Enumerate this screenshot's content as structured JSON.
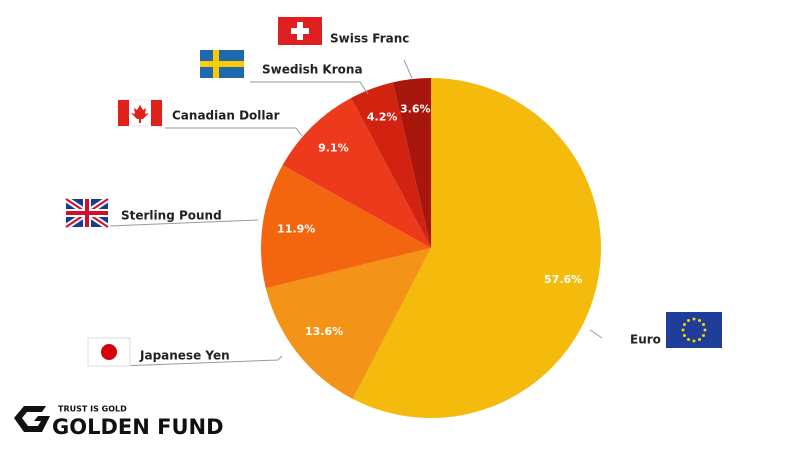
{
  "chart_data": {
    "type": "pie",
    "categories": [
      "Euro",
      "Japanese Yen",
      "Sterling Pound",
      "Canadian Dollar",
      "Swedish Krona",
      "Swiss Franc"
    ],
    "values": [
      57.6,
      13.6,
      11.9,
      9.1,
      4.2,
      3.6
    ],
    "value_labels": [
      "57.6%",
      "13.6%",
      "11.9%",
      "9.1%",
      "4.2%",
      "3.6%"
    ],
    "colors": [
      "#f4bb0c",
      "#f39418",
      "#f4650f",
      "#ee3a1c",
      "#d22311",
      "#a8170c"
    ]
  },
  "branding": {
    "tagline": "TRUST IS GOLD",
    "name": "GOLDEN FUND"
  }
}
